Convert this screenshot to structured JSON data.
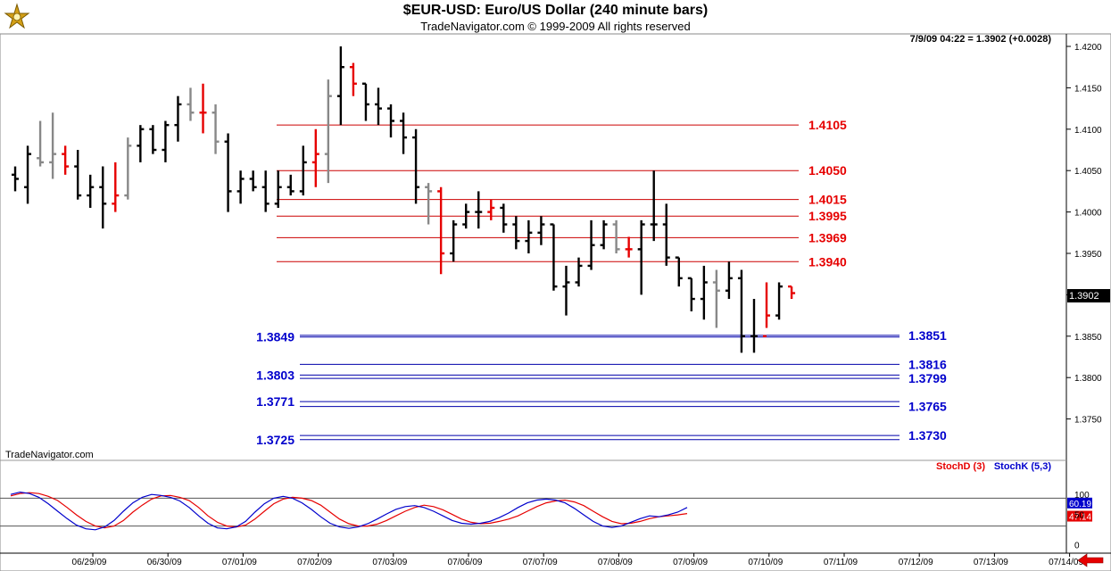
{
  "header": {
    "title": "$EUR-USD:  Euro/US Dollar  (240 minute bars)",
    "subtitle": "TradeNavigator.com © 1999-2009 All rights reserved"
  },
  "quote": {
    "readout": "7/9/09 04:22 = 1.3902 (+0.0028)",
    "last_price_label": "1.3902"
  },
  "watermark": "TradeNavigator.com",
  "chart_data": [
    {
      "type": "bar",
      "subtype": "ohlc",
      "ylim": [
        1.371,
        1.4225
      ],
      "y_ticks": [
        "1.4200",
        "1.4150",
        "1.4100",
        "1.4050",
        "1.4000",
        "1.3950",
        "1.3900",
        "1.3850",
        "1.3800",
        "1.3750"
      ],
      "x_ticks": [
        "06/29/09",
        "06/30/09",
        "07/01/09",
        "07/02/09",
        "07/03/09",
        "07/06/09",
        "07/07/09",
        "07/08/09",
        "07/09/09",
        "07/10/09",
        "07/11/09",
        "07/12/09",
        "07/13/09",
        "07/14/09"
      ],
      "bars_per_day": 6,
      "bar_colors": {
        "up": "#000000",
        "down_marker": "#e60000",
        "neutral": "#888888"
      },
      "bars": [
        [
          1.4045,
          1.4055,
          1.4025,
          1.404
        ],
        [
          1.403,
          1.408,
          1.401,
          1.407
        ],
        [
          1.4065,
          1.411,
          1.4055,
          1.406
        ],
        [
          1.406,
          1.412,
          1.404,
          1.407
        ],
        [
          1.407,
          1.408,
          1.4045,
          1.4055
        ],
        [
          1.4055,
          1.4075,
          1.4015,
          1.402
        ],
        [
          1.402,
          1.4045,
          1.4005,
          1.403
        ],
        [
          1.403,
          1.4055,
          1.398,
          1.401
        ],
        [
          1.401,
          1.406,
          1.4,
          1.402
        ],
        [
          1.402,
          1.409,
          1.4015,
          1.408
        ],
        [
          1.408,
          1.4105,
          1.406,
          1.41
        ],
        [
          1.41,
          1.4105,
          1.407,
          1.4075
        ],
        [
          1.4075,
          1.411,
          1.406,
          1.4105
        ],
        [
          1.4105,
          1.414,
          1.4085,
          1.413
        ],
        [
          1.413,
          1.415,
          1.411,
          1.412
        ],
        [
          1.412,
          1.4155,
          1.4095,
          1.412
        ],
        [
          1.412,
          1.413,
          1.407,
          1.4085
        ],
        [
          1.4085,
          1.4095,
          1.4,
          1.4025
        ],
        [
          1.4025,
          1.405,
          1.401,
          1.404
        ],
        [
          1.404,
          1.405,
          1.4025,
          1.403
        ],
        [
          1.403,
          1.405,
          1.4,
          1.401
        ],
        [
          1.401,
          1.405,
          1.4005,
          1.403
        ],
        [
          1.403,
          1.4045,
          1.402,
          1.4025
        ],
        [
          1.4025,
          1.408,
          1.402,
          1.406
        ],
        [
          1.406,
          1.41,
          1.403,
          1.407
        ],
        [
          1.407,
          1.416,
          1.4035,
          1.414
        ],
        [
          1.414,
          1.42,
          1.4105,
          1.4175
        ],
        [
          1.4175,
          1.418,
          1.414,
          1.4155
        ],
        [
          1.4155,
          1.4155,
          1.411,
          1.413
        ],
        [
          1.413,
          1.415,
          1.4105,
          1.4125
        ],
        [
          1.4125,
          1.413,
          1.409,
          1.411
        ],
        [
          1.411,
          1.412,
          1.407,
          1.409
        ],
        [
          1.409,
          1.41,
          1.401,
          1.403
        ],
        [
          1.403,
          1.4035,
          1.3985,
          1.4025
        ],
        [
          1.4025,
          1.403,
          1.3925,
          1.395
        ],
        [
          1.395,
          1.399,
          1.394,
          1.3985
        ],
        [
          1.3985,
          1.401,
          1.398,
          1.4
        ],
        [
          1.4,
          1.4025,
          1.398,
          1.4
        ],
        [
          1.4,
          1.4015,
          1.399,
          1.4005
        ],
        [
          1.4005,
          1.401,
          1.3975,
          1.3985
        ],
        [
          1.3985,
          1.3995,
          1.3955,
          1.3965
        ],
        [
          1.3965,
          1.399,
          1.395,
          1.3975
        ],
        [
          1.3975,
          1.3995,
          1.396,
          1.3985
        ],
        [
          1.3985,
          1.3985,
          1.3905,
          1.391
        ],
        [
          1.391,
          1.3935,
          1.3875,
          1.3915
        ],
        [
          1.3915,
          1.3945,
          1.391,
          1.3935
        ],
        [
          1.3935,
          1.399,
          1.393,
          1.396
        ],
        [
          1.396,
          1.399,
          1.3955,
          1.3985
        ],
        [
          1.3985,
          1.399,
          1.395,
          1.3955
        ],
        [
          1.3955,
          1.397,
          1.3945,
          1.3955
        ],
        [
          1.3955,
          1.399,
          1.39,
          1.3985
        ],
        [
          1.3985,
          1.405,
          1.3965,
          1.3985
        ],
        [
          1.3985,
          1.401,
          1.3935,
          1.3945
        ],
        [
          1.3945,
          1.3945,
          1.391,
          1.392
        ],
        [
          1.392,
          1.392,
          1.388,
          1.3895
        ],
        [
          1.3895,
          1.3935,
          1.387,
          1.3915
        ],
        [
          1.3915,
          1.393,
          1.386,
          1.3905
        ],
        [
          1.3905,
          1.394,
          1.3895,
          1.392
        ],
        [
          1.392,
          1.393,
          1.383,
          1.385
        ],
        [
          1.385,
          1.3895,
          1.383,
          1.385
        ],
        [
          1.385,
          1.3915,
          1.386,
          1.3875
        ],
        [
          1.3875,
          1.3915,
          1.387,
          1.391
        ],
        [
          1.391,
          1.391,
          1.3895,
          1.3902
        ]
      ],
      "red_marker_bars": [
        4,
        8,
        15,
        24,
        27,
        34,
        38,
        49,
        60,
        62
      ],
      "neutral_bars": [
        2,
        3,
        9,
        14,
        16,
        25,
        33,
        48,
        56
      ],
      "resistance_levels": [
        "1.4105",
        "1.4050",
        "1.4015",
        "1.3995",
        "1.3969",
        "1.3940"
      ],
      "support_levels": [
        {
          "left": "1.3849",
          "right": "1.3851"
        },
        {
          "left": "",
          "right": "1.3816"
        },
        {
          "left": "1.3803",
          "right": "1.3799"
        },
        {
          "left": "1.3771",
          "right": "1.3765"
        },
        {
          "left": "1.3725",
          "right": "1.3730"
        }
      ],
      "resistance_values": [
        1.4105,
        1.405,
        1.4015,
        1.3995,
        1.3969,
        1.394
      ],
      "support_values": [
        [
          1.3849,
          1.3851
        ],
        [
          1.3816,
          1.3816
        ],
        [
          1.3803,
          1.3799
        ],
        [
          1.3771,
          1.3765
        ],
        [
          1.3725,
          1.373
        ]
      ]
    },
    {
      "type": "line",
      "ylim": [
        -10,
        115
      ],
      "y_ticks": [
        "100",
        "50",
        "0"
      ],
      "overbought": 80,
      "oversold": 20,
      "series": [
        {
          "name": "StochD (3)",
          "color": "#e60000",
          "last_label": "47.14",
          "values": [
            85,
            90,
            92,
            90,
            84,
            75,
            60,
            44,
            30,
            20,
            16,
            20,
            32,
            50,
            65,
            78,
            85,
            86,
            82,
            75,
            60,
            42,
            28,
            20,
            18,
            22,
            35,
            52,
            68,
            78,
            82,
            80,
            75,
            65,
            50,
            35,
            25,
            20,
            20,
            24,
            32,
            42,
            52,
            60,
            65,
            62,
            55,
            45,
            35,
            28,
            25,
            26,
            30,
            35,
            42,
            52,
            62,
            70,
            74,
            76,
            72,
            64,
            52,
            40,
            30,
            25,
            26,
            30,
            36,
            40,
            42,
            44,
            47
          ]
        },
        {
          "name": "StochK (5,3)",
          "color": "#0000cc",
          "last_label": "60.19",
          "values": [
            88,
            93,
            90,
            82,
            68,
            52,
            36,
            22,
            14,
            12,
            18,
            32,
            52,
            70,
            82,
            88,
            86,
            82,
            74,
            60,
            42,
            26,
            16,
            14,
            18,
            30,
            50,
            68,
            80,
            84,
            80,
            70,
            56,
            40,
            26,
            18,
            15,
            18,
            25,
            35,
            46,
            56,
            62,
            64,
            60,
            52,
            42,
            32,
            26,
            24,
            26,
            30,
            38,
            48,
            60,
            70,
            76,
            78,
            76,
            70,
            58,
            44,
            30,
            20,
            17,
            20,
            28,
            36,
            42,
            40,
            44,
            50,
            60
          ]
        }
      ]
    }
  ]
}
